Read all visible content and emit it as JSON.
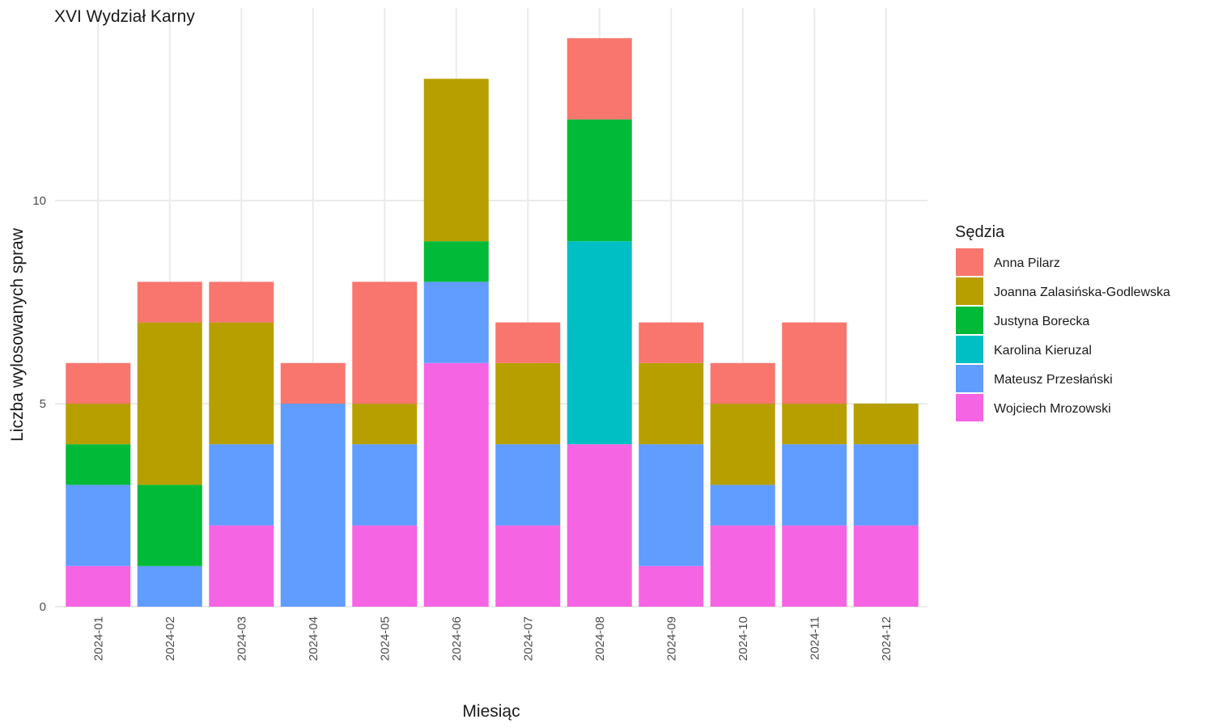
{
  "chart_data": {
    "type": "bar",
    "stacked": true,
    "title": "XVI Wydział Karny",
    "xlabel": "Miesiąc",
    "ylabel": "Liczba wylosowanych spraw",
    "ylim": [
      0,
      14
    ],
    "yticks": [
      0,
      5,
      10
    ],
    "grid": true,
    "legend_title": "Sędzia",
    "legend_position": "right",
    "categories": [
      "2024-01",
      "2024-02",
      "2024-03",
      "2024-04",
      "2024-05",
      "2024-06",
      "2024-07",
      "2024-08",
      "2024-09",
      "2024-10",
      "2024-11",
      "2024-12"
    ],
    "series": [
      {
        "name": "Wojciech Mrozowski",
        "color": "#F564E3",
        "values": [
          1,
          0,
          2,
          0,
          2,
          6,
          2,
          4,
          1,
          2,
          2,
          2
        ]
      },
      {
        "name": "Mateusz Przesłański",
        "color": "#619CFF",
        "values": [
          2,
          1,
          2,
          5,
          2,
          2,
          2,
          0,
          3,
          1,
          2,
          2
        ]
      },
      {
        "name": "Karolina Kieruzal",
        "color": "#00BFC4",
        "values": [
          0,
          0,
          0,
          0,
          0,
          0,
          0,
          5,
          0,
          0,
          0,
          0
        ]
      },
      {
        "name": "Justyna Borecka",
        "color": "#00BA38",
        "values": [
          1,
          2,
          0,
          0,
          0,
          1,
          0,
          3,
          0,
          0,
          0,
          0
        ]
      },
      {
        "name": "Joanna Zalasińska-Godlewska",
        "color": "#B79F00",
        "values": [
          1,
          4,
          3,
          0,
          1,
          4,
          2,
          0,
          2,
          2,
          1,
          1
        ]
      },
      {
        "name": "Anna Pilarz",
        "color": "#F8766D",
        "values": [
          1,
          1,
          1,
          1,
          3,
          0,
          1,
          2,
          1,
          1,
          2,
          0
        ]
      }
    ],
    "legend_order": [
      "Anna Pilarz",
      "Joanna Zalasińska-Godlewska",
      "Justyna Borecka",
      "Karolina Kieruzal",
      "Mateusz Przesłański",
      "Wojciech Mrozowski"
    ]
  }
}
